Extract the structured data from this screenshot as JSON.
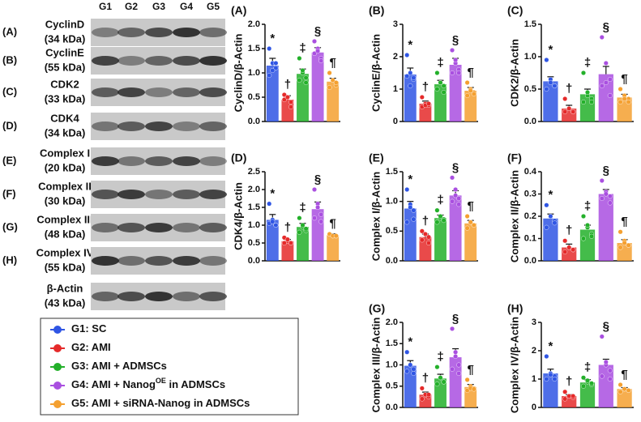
{
  "blots": {
    "lanes": [
      "G1",
      "G2",
      "G3",
      "G4",
      "G5"
    ],
    "rows": [
      {
        "panel": "(A)",
        "label": "CyclinD",
        "kda": "(34 kDa)"
      },
      {
        "panel": "(B)",
        "label": "CyclinE",
        "kda": "(55 kDa)"
      },
      {
        "panel": "(C)",
        "label": "CDK2",
        "kda": "(33 kDa)"
      },
      {
        "panel": "(D)",
        "label": "CDK4",
        "kda": "(34 kDa)"
      },
      {
        "panel": "(E)",
        "label": "Complex I",
        "kda": "(20 kDa)"
      },
      {
        "panel": "(F)",
        "label": "Complex II",
        "kda": "(30 kDa)"
      },
      {
        "panel": "(G)",
        "label": "Complex III",
        "kda": "(48 kDa)"
      },
      {
        "panel": "(H)",
        "label": "Complex IV",
        "kda": "(55 kDa)"
      }
    ],
    "control": {
      "label": "β-Actin",
      "kda": "(43 kDa)"
    }
  },
  "groups": [
    {
      "name": [
        "G1: SC"
      ],
      "color": "#2f55e4"
    },
    {
      "name": [
        "G2: AMI"
      ],
      "color": "#e52a2a"
    },
    {
      "name": [
        "G3: AMI + ADMSCs"
      ],
      "color": "#23b02a"
    },
    {
      "name": [
        "G4: AMI + Nanog",
        "OE",
        " in ADMSCs"
      ],
      "color": "#a94fe0"
    },
    {
      "name": [
        "G5: AMI + siRNA-Nanog in ADMSCs"
      ],
      "color": "#f4a030"
    }
  ],
  "chart_data": [
    {
      "type": "bar",
      "panel": "(A)",
      "ylabel": "CyclinD/β-Actin",
      "ylim": [
        0,
        2
      ],
      "yticks": [
        {
          "value": 0,
          "label": "0.0"
        },
        0.5,
        {
          "value": 1,
          "label": "1.0"
        },
        1.5,
        {
          "value": 2,
          "label": "2.0"
        }
      ],
      "values": [
        1.15,
        0.45,
        0.98,
        1.42,
        0.82
      ],
      "errors": [
        0.15,
        0.08,
        0.1,
        0.1,
        0.07
      ],
      "points": [
        [
          1.5,
          1.2,
          1.1,
          0.95,
          1.05,
          1.2
        ],
        [
          0.55,
          0.5,
          0.3,
          0.45,
          0.5,
          0.4
        ],
        [
          1.3,
          1.0,
          0.9,
          0.85,
          1.05,
          0.8
        ],
        [
          1.65,
          1.5,
          1.3,
          1.4,
          1.45,
          1.25
        ],
        [
          1.0,
          0.85,
          0.75,
          0.7,
          0.85,
          0.8
        ]
      ],
      "annotations": [
        "*",
        "†",
        "‡",
        "§",
        "¶"
      ]
    },
    {
      "type": "bar",
      "panel": "(B)",
      "ylabel": "CyclinE/β-Actin",
      "ylim": [
        0,
        3
      ],
      "yticks": [
        0,
        1,
        2,
        3
      ],
      "values": [
        1.45,
        0.55,
        1.15,
        1.75,
        0.95
      ],
      "errors": [
        0.2,
        0.08,
        0.12,
        0.2,
        0.1
      ],
      "points": [
        [
          2.05,
          1.5,
          1.3,
          1.4,
          1.1,
          1.35
        ],
        [
          0.75,
          0.55,
          0.5,
          0.45,
          0.5,
          0.55
        ],
        [
          1.5,
          1.2,
          1.1,
          1.0,
          1.2,
          0.9
        ],
        [
          2.2,
          1.8,
          1.6,
          1.5,
          1.9,
          1.5
        ],
        [
          1.2,
          1.0,
          0.9,
          0.8,
          0.95,
          0.85
        ]
      ],
      "annotations": [
        "*",
        "†",
        "‡",
        "§",
        "¶"
      ]
    },
    {
      "type": "bar",
      "panel": "(C)",
      "ylabel": "CDK2/β-Actin",
      "ylim": [
        0,
        1.5
      ],
      "yticks": [
        {
          "value": 0,
          "label": "0.0"
        },
        0.5,
        {
          "value": 1,
          "label": "1.0"
        },
        1.5
      ],
      "values": [
        0.62,
        0.2,
        0.42,
        0.73,
        0.37
      ],
      "errors": [
        0.07,
        0.05,
        0.08,
        0.12,
        0.05
      ],
      "points": [
        [
          0.95,
          0.65,
          0.55,
          0.5,
          0.6,
          0.55
        ],
        [
          0.35,
          0.2,
          0.15,
          0.15,
          0.2,
          0.15
        ],
        [
          0.75,
          0.4,
          0.35,
          0.3,
          0.45,
          0.3
        ],
        [
          1.3,
          0.9,
          0.65,
          0.55,
          0.6,
          0.4
        ],
        [
          0.5,
          0.4,
          0.35,
          0.3,
          0.35,
          0.3
        ]
      ],
      "annotations": [
        "*",
        "†",
        "‡",
        "§",
        "¶"
      ]
    },
    {
      "type": "bar",
      "panel": "(D)",
      "ylabel": "CDK4/β-Actin",
      "ylim": [
        0,
        2.5
      ],
      "yticks": [
        {
          "value": 0,
          "label": "0.0"
        },
        0.5,
        {
          "value": 1,
          "label": "1.0"
        },
        1.5,
        {
          "value": 2,
          "label": "2.0"
        },
        2.5
      ],
      "values": [
        1.15,
        0.55,
        0.95,
        1.45,
        0.72
      ],
      "errors": [
        0.15,
        0.05,
        0.1,
        0.2,
        0.04
      ],
      "points": [
        [
          1.6,
          1.15,
          1.0,
          1.05,
          1.1,
          1.0
        ],
        [
          0.65,
          0.55,
          0.5,
          0.5,
          0.6,
          0.5
        ],
        [
          1.2,
          0.95,
          0.85,
          0.8,
          1.0,
          0.9
        ],
        [
          2.0,
          1.6,
          1.3,
          1.2,
          1.5,
          1.1
        ],
        [
          0.75,
          0.7,
          0.7,
          0.75,
          0.7,
          0.7
        ]
      ],
      "annotations": [
        "*",
        "†",
        "‡",
        "§",
        "¶"
      ]
    },
    {
      "type": "bar",
      "panel": "(E)",
      "ylabel": "Complex I/β-Actin",
      "ylim": [
        0,
        1.5
      ],
      "yticks": [
        {
          "value": 0,
          "label": "0.0"
        },
        0.5,
        {
          "value": 1,
          "label": "1.0"
        },
        1.5
      ],
      "values": [
        0.88,
        0.4,
        0.72,
        1.1,
        0.63
      ],
      "errors": [
        0.12,
        0.05,
        0.05,
        0.08,
        0.05
      ],
      "points": [
        [
          1.2,
          0.95,
          0.7,
          0.65,
          0.9,
          0.85
        ],
        [
          0.5,
          0.45,
          0.3,
          0.35,
          0.45,
          0.4
        ],
        [
          0.85,
          0.72,
          0.7,
          0.65,
          0.75,
          0.68
        ],
        [
          1.4,
          1.2,
          1.05,
          1.0,
          1.1,
          0.95
        ],
        [
          0.75,
          0.65,
          0.6,
          0.55,
          0.65,
          0.6
        ]
      ],
      "annotations": [
        "*",
        "†",
        "‡",
        "§",
        "¶"
      ]
    },
    {
      "type": "bar",
      "panel": "(F)",
      "ylabel": "Complex II/β-Actin",
      "ylim": [
        0,
        0.4
      ],
      "yticks": [
        {
          "value": 0,
          "label": "0.0"
        },
        0.1,
        0.2,
        0.3,
        0.4
      ],
      "values": [
        0.19,
        0.06,
        0.14,
        0.3,
        0.08
      ],
      "errors": [
        0.02,
        0.015,
        0.02,
        0.02,
        0.015
      ],
      "points": [
        [
          0.25,
          0.2,
          0.18,
          0.15,
          0.2,
          0.17
        ],
        [
          0.09,
          0.06,
          0.05,
          0.04,
          0.06,
          0.05
        ],
        [
          0.2,
          0.15,
          0.12,
          0.1,
          0.16,
          0.11
        ],
        [
          0.36,
          0.31,
          0.29,
          0.28,
          0.3,
          0.26
        ],
        [
          0.13,
          0.09,
          0.07,
          0.06,
          0.08,
          0.07
        ]
      ],
      "annotations": [
        "*",
        "†",
        "‡",
        "§",
        "¶"
      ]
    },
    {
      "type": "bar",
      "panel": "(G)",
      "ylabel": "Complex III/β-Actin",
      "ylim": [
        0,
        2
      ],
      "yticks": [
        {
          "value": 0,
          "label": "0.0"
        },
        0.5,
        {
          "value": 1,
          "label": "1.0"
        },
        1.5,
        {
          "value": 2,
          "label": "2.0"
        }
      ],
      "values": [
        0.98,
        0.3,
        0.68,
        1.18,
        0.48
      ],
      "errors": [
        0.12,
        0.06,
        0.1,
        0.2,
        0.06
      ],
      "points": [
        [
          1.3,
          1.0,
          0.9,
          0.85,
          1.0,
          0.8
        ],
        [
          0.45,
          0.3,
          0.25,
          0.2,
          0.3,
          0.3
        ],
        [
          0.95,
          0.7,
          0.6,
          0.55,
          0.7,
          0.6
        ],
        [
          1.85,
          1.2,
          1.0,
          0.9,
          1.3,
          0.8
        ],
        [
          0.65,
          0.5,
          0.45,
          0.4,
          0.45,
          0.43
        ]
      ],
      "annotations": [
        "*",
        "†",
        "‡",
        "§",
        "¶"
      ]
    },
    {
      "type": "bar",
      "panel": "(H)",
      "ylabel": "Complex IV/β-Actin",
      "ylim": [
        0,
        3
      ],
      "yticks": [
        0,
        1,
        2,
        3
      ],
      "values": [
        1.2,
        0.4,
        0.88,
        1.5,
        0.65
      ],
      "errors": [
        0.15,
        0.05,
        0.1,
        0.2,
        0.05
      ],
      "points": [
        [
          1.8,
          1.2,
          1.1,
          1.0,
          1.15,
          1.0
        ],
        [
          0.55,
          0.4,
          0.35,
          0.3,
          0.4,
          0.4
        ],
        [
          1.05,
          0.9,
          0.8,
          0.75,
          0.95,
          0.85
        ],
        [
          2.5,
          1.5,
          1.3,
          1.1,
          1.6,
          1.0
        ],
        [
          0.8,
          0.65,
          0.6,
          0.55,
          0.65,
          0.6
        ]
      ],
      "annotations": [
        "*",
        "†",
        "‡",
        "§",
        "¶"
      ]
    }
  ]
}
